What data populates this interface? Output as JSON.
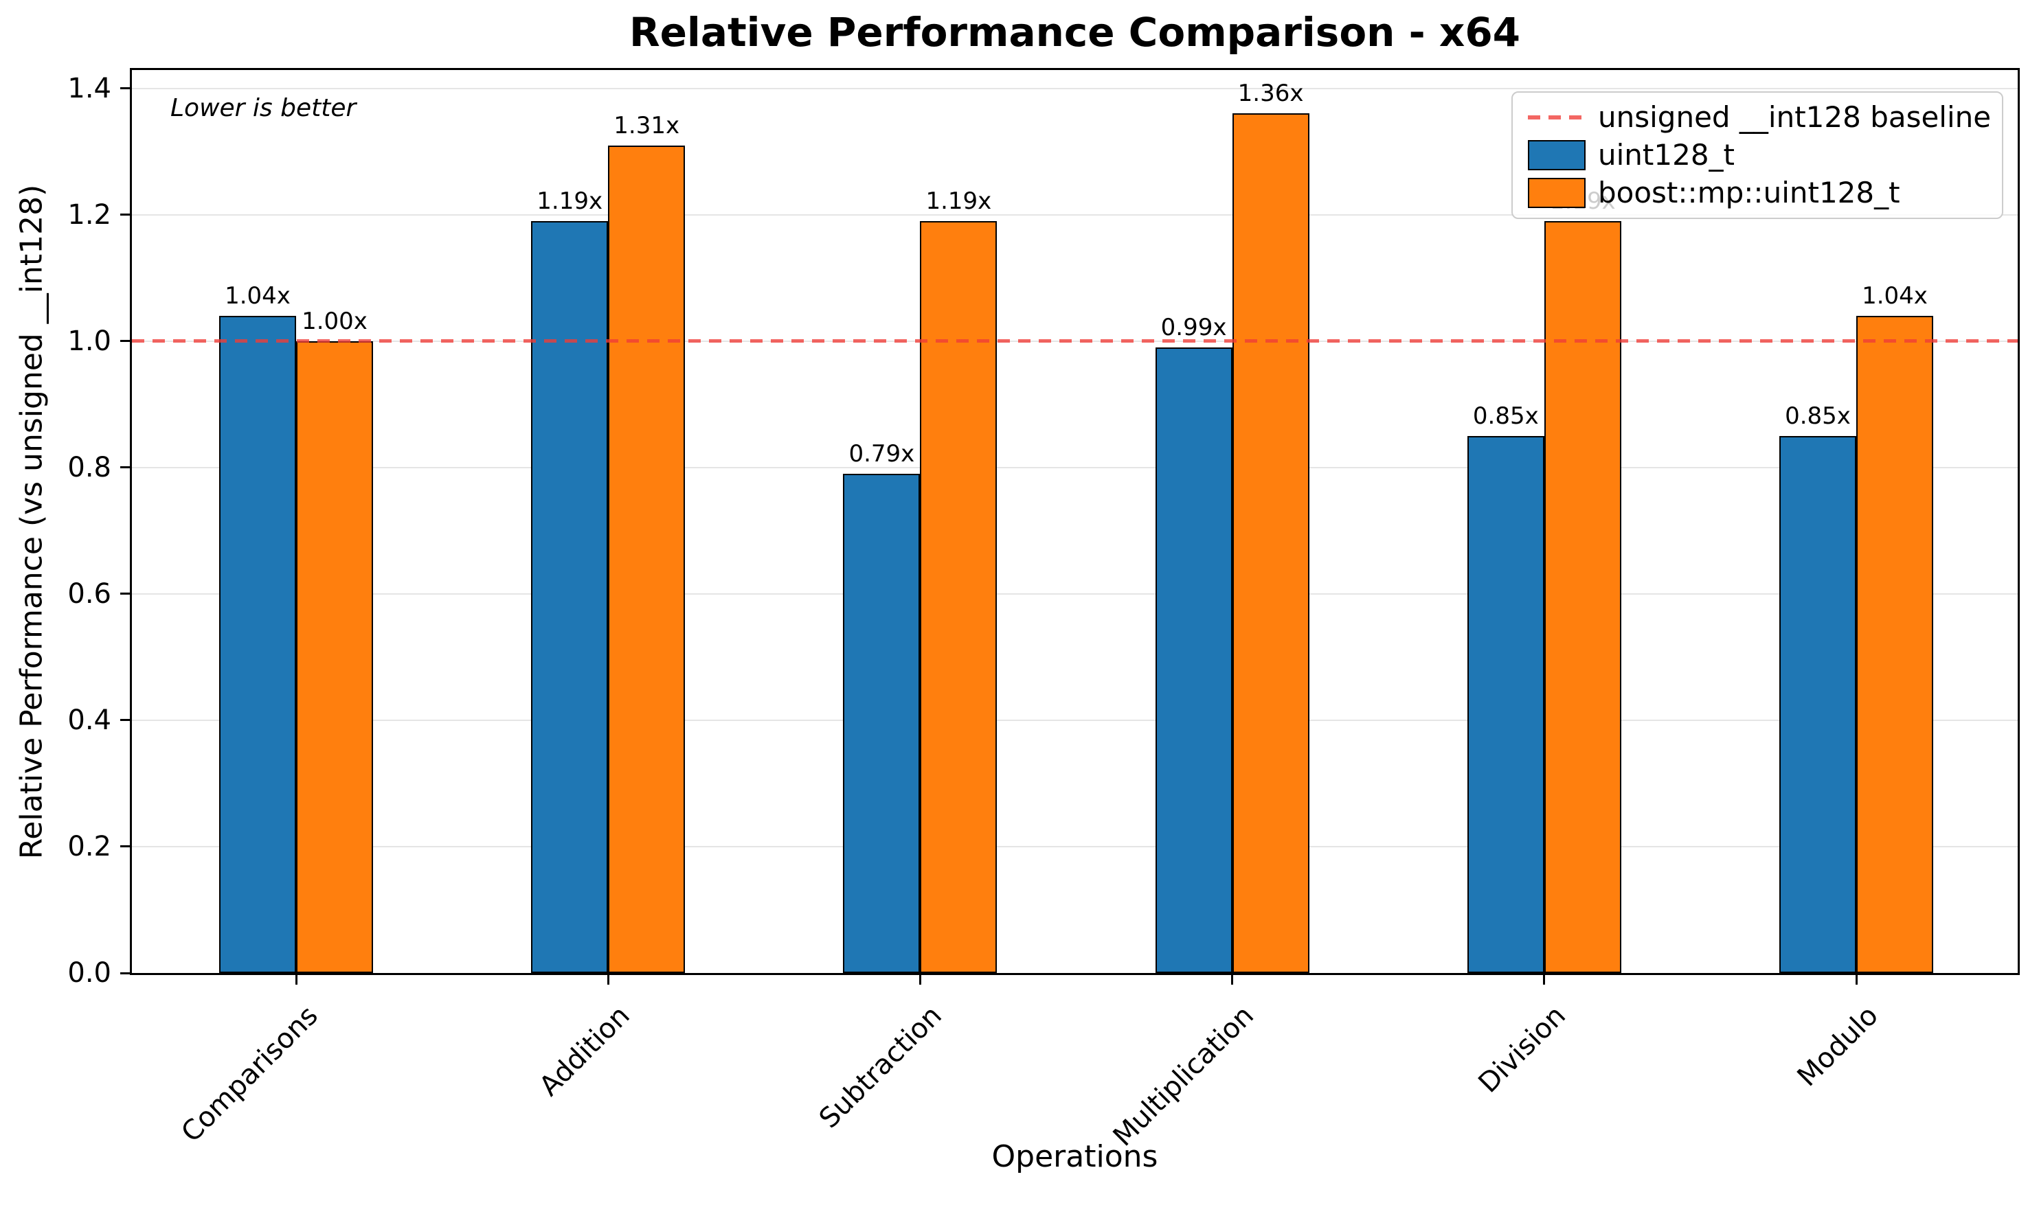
{
  "chart_data": {
    "type": "bar",
    "title": "Relative Performance Comparison - x64",
    "xlabel": "Operations",
    "ylabel": "Relative Performance (vs unsigned __int128)",
    "annotation": "Lower is better",
    "categories": [
      "Comparisons",
      "Addition",
      "Subtraction",
      "Multiplication",
      "Division",
      "Modulo"
    ],
    "series": [
      {
        "name": "uint128_t",
        "color": "#1f77b4",
        "values": [
          1.04,
          1.19,
          0.79,
          0.99,
          0.85,
          0.85
        ],
        "labels": [
          "1.04x",
          "1.19x",
          "0.79x",
          "0.99x",
          "0.85x",
          "0.85x"
        ]
      },
      {
        "name": "boost::mp::uint128_t",
        "color": "#ff7f0e",
        "values": [
          1.0,
          1.31,
          1.19,
          1.36,
          1.19,
          1.04
        ],
        "labels": [
          "1.00x",
          "1.31x",
          "1.19x",
          "1.36x",
          "1.19x",
          "1.04x"
        ]
      }
    ],
    "baseline": {
      "value": 1.0,
      "label": "unsigned __int128 baseline",
      "color": "rgba(240,60,55,0.78)"
    },
    "yticks": [
      "0.0",
      "0.2",
      "0.4",
      "0.6",
      "0.8",
      "1.0",
      "1.2",
      "1.4"
    ],
    "ylim": [
      0,
      1.429
    ],
    "grid": true,
    "legend_position": "upper right"
  }
}
